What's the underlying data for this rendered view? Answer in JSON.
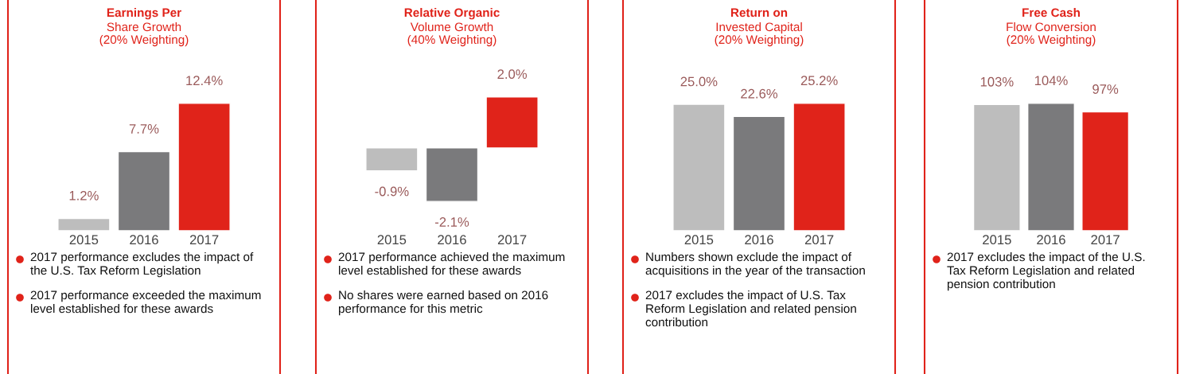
{
  "chart_data": [
    {
      "type": "bar",
      "title": "Earnings Per",
      "subtitle": "Share Growth\n(20% Weighting)",
      "categories": [
        "2015",
        "2016",
        "2017"
      ],
      "values": [
        1.2,
        7.7,
        12.4
      ],
      "value_labels": [
        "1.2%",
        "7.7%",
        "12.4%"
      ],
      "colors": [
        "#bdbdbd",
        "#7a7a7c",
        "#e0231a"
      ],
      "annotations": [
        "2017 performance excludes the impact of the U.S. Tax Reform Legislation",
        "2017 performance exceeded the maximum level established for these awards"
      ]
    },
    {
      "type": "bar",
      "title": "Relative Organic",
      "subtitle": "Volume Growth\n(40% Weighting)",
      "categories": [
        "2015",
        "2016",
        "2017"
      ],
      "values": [
        -0.9,
        -2.1,
        2.0
      ],
      "value_labels": [
        "-0.9%",
        "-2.1%",
        "2.0%"
      ],
      "colors": [
        "#bdbdbd",
        "#7a7a7c",
        "#e0231a"
      ],
      "annotations": [
        "2017 performance achieved the maximum level established for these awards",
        "No shares were earned based on 2016 performance for this metric"
      ]
    },
    {
      "type": "bar",
      "title": "Return on",
      "subtitle": "Invested Capital\n(20% Weighting)",
      "categories": [
        "2015",
        "2016",
        "2017"
      ],
      "values": [
        25.0,
        22.6,
        25.2
      ],
      "value_labels": [
        "25.0%",
        "22.6%",
        "25.2%"
      ],
      "colors": [
        "#bdbdbd",
        "#7a7a7c",
        "#e0231a"
      ],
      "annotations": [
        "Numbers shown exclude the impact of acquisitions in the year of the transaction",
        "2017 excludes the impact of U.S. Tax Reform Legislation and related pension contribution"
      ]
    },
    {
      "type": "bar",
      "title": "Free Cash",
      "subtitle": "Flow Conversion\n(20% Weighting)",
      "categories": [
        "2015",
        "2016",
        "2017"
      ],
      "values": [
        103,
        104,
        97
      ],
      "value_labels": [
        "103%",
        "104%",
        "97%"
      ],
      "colors": [
        "#bdbdbd",
        "#7a7a7c",
        "#e0231a"
      ],
      "annotations": [
        "2017 excludes the impact of the U.S. Tax Reform Legislation and related pension contribution"
      ]
    }
  ]
}
